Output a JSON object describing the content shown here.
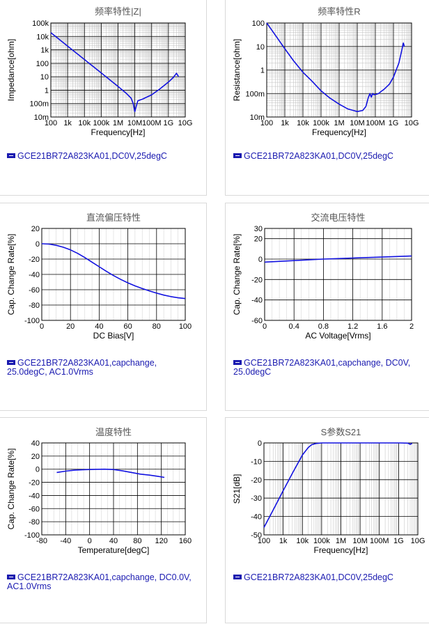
{
  "colors": {
    "curve": "#1212e0",
    "legend": "#1a1ab0",
    "grid": "#000000",
    "title": "#555555"
  },
  "chart_data": [
    {
      "id": "impedance",
      "type": "line",
      "title": "频率特性|Z|",
      "xlabel": "Frequency[Hz]",
      "ylabel": "Impedance[ohm]",
      "xscale": "log",
      "yscale": "log",
      "xlim": [
        100,
        10000000000
      ],
      "ylim": [
        0.01,
        100000
      ],
      "xticks": [
        100,
        1000,
        10000,
        100000,
        1000000,
        10000000,
        100000000,
        1000000000,
        10000000000
      ],
      "xtick_labels": [
        "100",
        "1k",
        "10k",
        "100k",
        "1M",
        "10M",
        "100M",
        "1G",
        "10G"
      ],
      "yticks": [
        0.01,
        0.1,
        1,
        10,
        100,
        1000,
        10000,
        100000
      ],
      "ytick_labels": [
        "10m",
        "100m",
        "1",
        "10",
        "100",
        "1k",
        "10k",
        "100k"
      ],
      "series": [
        {
          "name": "GCE21BR72A823KA01,DC0V,25degC",
          "x": [
            100,
            1000,
            10000,
            100000,
            1000000,
            3000000,
            6000000,
            8000000,
            10000000,
            12000000,
            15000000,
            30000000,
            100000000,
            300000000,
            1000000000,
            2000000000,
            3000000000,
            4000000000
          ],
          "y": [
            19000,
            1900,
            190,
            19,
            1.9,
            0.6,
            0.25,
            0.1,
            0.025,
            0.06,
            0.16,
            0.22,
            0.45,
            1.2,
            4,
            9,
            18,
            10
          ]
        }
      ],
      "legend": [
        "GCE21BR72A823KA01,DC0V,25degC"
      ]
    },
    {
      "id": "resistance",
      "type": "line",
      "title": "频率特性R",
      "xlabel": "Frequency[Hz]",
      "ylabel": "Resistance[ohm]",
      "xscale": "log",
      "yscale": "log",
      "xlim": [
        100,
        10000000000
      ],
      "ylim": [
        0.01,
        100
      ],
      "xticks": [
        100,
        1000,
        10000,
        100000,
        1000000,
        10000000,
        100000000,
        1000000000,
        10000000000
      ],
      "xtick_labels": [
        "100",
        "1k",
        "10k",
        "100k",
        "1M",
        "10M",
        "100M",
        "1G",
        "10G"
      ],
      "yticks": [
        0.01,
        0.1,
        1,
        10,
        100
      ],
      "ytick_labels": [
        "10m",
        "100m",
        "1",
        "10",
        "100"
      ],
      "series": [
        {
          "name": "GCE21BR72A823KA01,DC0V,25degC",
          "x": [
            100,
            300,
            1000,
            3000,
            10000,
            30000,
            100000,
            300000,
            1000000,
            3000000,
            10000000,
            20000000,
            30000000,
            40000000,
            50000000,
            60000000,
            70000000,
            80000000,
            100000000,
            150000000,
            200000000,
            300000000,
            600000000,
            1000000000,
            2000000000,
            3000000000,
            3500000000,
            4000000000
          ],
          "y": [
            100,
            30,
            8,
            2.5,
            0.8,
            0.35,
            0.13,
            0.065,
            0.035,
            0.022,
            0.017,
            0.019,
            0.028,
            0.065,
            0.1,
            0.07,
            0.1,
            0.09,
            0.09,
            0.1,
            0.12,
            0.15,
            0.25,
            0.5,
            2,
            8,
            14,
            10
          ]
        }
      ],
      "legend": [
        "GCE21BR72A823KA01,DC0V,25degC"
      ]
    },
    {
      "id": "dcbias",
      "type": "line",
      "title": "直流偏压特性",
      "xlabel": "DC Bias[V]",
      "ylabel": "Cap. Change Rate[%]",
      "xscale": "linear",
      "yscale": "linear",
      "xlim": [
        0,
        100
      ],
      "ylim": [
        -100,
        20
      ],
      "xticks": [
        0,
        20,
        40,
        60,
        80,
        100
      ],
      "xtick_labels": [
        "0",
        "20",
        "40",
        "60",
        "80",
        "100"
      ],
      "yticks": [
        -100,
        -80,
        -60,
        -40,
        -20,
        0,
        20
      ],
      "ytick_labels": [
        "-100",
        "-80",
        "-60",
        "-40",
        "-20",
        "0",
        "20"
      ],
      "series": [
        {
          "name": "GCE21BR72A823KA01,capchange, 25.0degC, AC1.0Vrms",
          "x": [
            0,
            5,
            10,
            15,
            20,
            25,
            30,
            35,
            40,
            45,
            50,
            55,
            60,
            65,
            70,
            75,
            80,
            85,
            90,
            95,
            100
          ],
          "y": [
            0,
            -0.5,
            -2,
            -4.5,
            -8,
            -12.5,
            -18,
            -24,
            -30,
            -36,
            -41.5,
            -46.5,
            -51,
            -55,
            -58.5,
            -61.5,
            -64.5,
            -67,
            -69,
            -70.5,
            -71.5
          ]
        }
      ],
      "legend": [
        "GCE21BR72A823KA01,capchange,",
        "25.0degC, AC1.0Vrms"
      ]
    },
    {
      "id": "acvoltage",
      "type": "line",
      "title": "交流电压特性",
      "xlabel": "AC Voltage[Vrms]",
      "ylabel": "Cap. Change Rate[%]",
      "xscale": "linear",
      "yscale": "linear",
      "xlim": [
        0,
        2
      ],
      "ylim": [
        -60,
        30
      ],
      "xticks": [
        0,
        0.4,
        0.8,
        1.2,
        1.6,
        2
      ],
      "xtick_labels": [
        "0",
        "0.4",
        "0.8",
        "1.2",
        "1.6",
        "2"
      ],
      "yticks": [
        -60,
        -40,
        -20,
        0,
        20,
        30
      ],
      "ytick_labels": [
        "-60",
        "-40",
        "-20",
        "0",
        "20",
        "30"
      ],
      "series": [
        {
          "name": "GCE21BR72A823KA01,capchange, DC0V, 25.0degC",
          "x": [
            0,
            0.4,
            0.8,
            1.0,
            1.2,
            1.6,
            2.0
          ],
          "y": [
            -3,
            -1.5,
            0,
            0.5,
            1,
            2,
            3
          ]
        }
      ],
      "legend": [
        "GCE21BR72A823KA01,capchange, DC0V,",
        "25.0degC"
      ]
    },
    {
      "id": "temperature",
      "type": "line",
      "title": "温度特性",
      "xlabel": "Temperature[degC]",
      "ylabel": "Cap. Change Rate[%]",
      "xscale": "linear",
      "yscale": "linear",
      "xlim": [
        -80,
        160
      ],
      "ylim": [
        -100,
        40
      ],
      "xticks": [
        -80,
        -40,
        0,
        40,
        80,
        120,
        160
      ],
      "xtick_labels": [
        "-80",
        "-40",
        "0",
        "40",
        "80",
        "120",
        "160"
      ],
      "yticks": [
        -100,
        -80,
        -60,
        -40,
        -20,
        0,
        20,
        40
      ],
      "ytick_labels": [
        "-100",
        "-80",
        "-60",
        "-40",
        "-20",
        "0",
        "20",
        "40"
      ],
      "series": [
        {
          "name": "GCE21BR72A823KA01,capchange, DC0.0V, AC1.0Vrms",
          "x": [
            -55,
            -40,
            -25,
            -10,
            0,
            10,
            25,
            40,
            55,
            70,
            85,
            100,
            115,
            125
          ],
          "y": [
            -5,
            -3,
            -1.5,
            -0.8,
            -0.5,
            -0.2,
            0,
            -0.5,
            -2.5,
            -5,
            -7.5,
            -9,
            -11,
            -12.5
          ]
        }
      ],
      "legend": [
        "GCE21BR72A823KA01,capchange, DC0.0V,",
        "AC1.0Vrms"
      ]
    },
    {
      "id": "s21",
      "type": "line",
      "title": "S参数S21",
      "xlabel": "Frequency[Hz]",
      "ylabel": "S21[dB]",
      "xscale": "log",
      "yscale": "linear",
      "xlim": [
        100,
        10000000000
      ],
      "ylim": [
        -50,
        0
      ],
      "xticks": [
        100,
        1000,
        10000,
        100000,
        1000000,
        10000000,
        100000000,
        1000000000,
        10000000000
      ],
      "xtick_labels": [
        "100",
        "1k",
        "10k",
        "100k",
        "1M",
        "10M",
        "100M",
        "1G",
        "10G"
      ],
      "yticks": [
        -50,
        -40,
        -30,
        -20,
        -10,
        0
      ],
      "ytick_labels": [
        "-50",
        "-40",
        "-30",
        "-20",
        "-10",
        "0"
      ],
      "series": [
        {
          "name": "GCE21BR72A823KA01,DC0V,25degC",
          "x": [
            100,
            300,
            1000,
            3000,
            10000,
            20000,
            30000,
            50000,
            100000,
            1000000,
            10000000,
            100000000,
            1000000000,
            3000000000,
            4000000000,
            5000000000
          ],
          "y": [
            -46,
            -36.5,
            -26,
            -16.5,
            -6.5,
            -2.5,
            -1,
            -0.3,
            0,
            0,
            0,
            0,
            0,
            -0.1,
            -0.8,
            -0.2
          ]
        }
      ],
      "legend": [
        "GCE21BR72A823KA01,DC0V,25degC"
      ]
    }
  ]
}
